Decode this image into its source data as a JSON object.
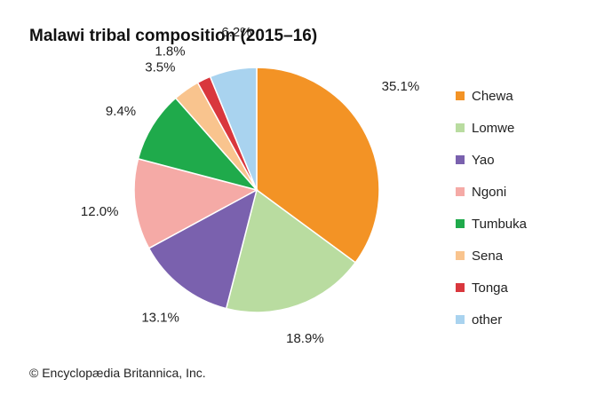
{
  "chart_data": {
    "type": "pie",
    "title": "Malawi tribal composition (2015–16)",
    "slices": [
      {
        "name": "Chewa",
        "value": 35.1,
        "label": "35.1%",
        "color": "#f39325"
      },
      {
        "name": "Lomwe",
        "value": 18.9,
        "label": "18.9%",
        "color": "#b9dca0"
      },
      {
        "name": "Yao",
        "value": 13.1,
        "label": "13.1%",
        "color": "#7a61ae"
      },
      {
        "name": "Ngoni",
        "value": 12.0,
        "label": "12.0%",
        "color": "#f5aaa6"
      },
      {
        "name": "Tumbuka",
        "value": 9.4,
        "label": "9.4%",
        "color": "#1faa4b"
      },
      {
        "name": "Sena",
        "value": 3.5,
        "label": "3.5%",
        "color": "#f9c48e"
      },
      {
        "name": "Tonga",
        "value": 1.8,
        "label": "1.8%",
        "color": "#d9373d"
      },
      {
        "name": "other",
        "value": 6.2,
        "label": "6.2%",
        "color": "#a9d3ef"
      }
    ],
    "start_angle_deg": 0,
    "direction": "clockwise",
    "legend_position": "right"
  },
  "credit": "© Encyclopædia Britannica, Inc."
}
